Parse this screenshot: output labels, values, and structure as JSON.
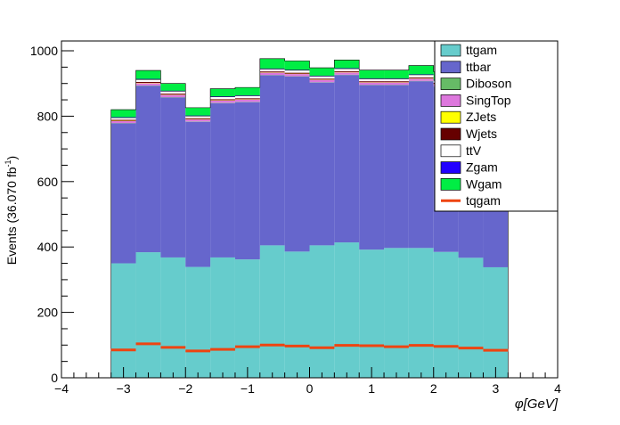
{
  "chart_data": {
    "type": "stacked-histogram",
    "x_edges": [
      -3.2,
      -2.8,
      -2.4,
      -2.0,
      -1.6,
      -1.2,
      -0.8,
      -0.4,
      0.0,
      0.4,
      0.8,
      1.2,
      1.6,
      2.0,
      2.4,
      2.8,
      3.2
    ],
    "xlim": [
      -4,
      4
    ],
    "ylim": [
      0,
      1030
    ],
    "x_ticks": [
      -4,
      -3,
      -2,
      -1,
      0,
      1,
      2,
      3,
      4
    ],
    "y_ticks": [
      0,
      200,
      400,
      600,
      800,
      1000
    ],
    "x_tick_labels": [
      "−4",
      "−3",
      "−2",
      "−1",
      "0",
      "1",
      "2",
      "3",
      "4"
    ],
    "y_tick_labels": [
      "0",
      "200",
      "400",
      "600",
      "800",
      "1000"
    ],
    "ylabel_main": "Events (36.070 fb",
    "ylabel_sup": "-1",
    "ylabel_end": ")",
    "xlabel_phi": "φ",
    "xlabel_unit": "[GeV]",
    "stack": [
      {
        "name": "ttgam",
        "color": "#66cccc",
        "values": [
          350,
          384,
          368,
          339,
          368,
          362,
          405,
          386,
          405,
          414,
          392,
          397,
          397,
          385,
          367,
          338
        ]
      },
      {
        "name": "ttbar",
        "color": "#6666cc",
        "values": [
          428,
          509,
          489,
          444,
          472,
          481,
          520,
          535,
          498,
          512,
          503,
          498,
          510,
          505,
          520,
          548
        ]
      },
      {
        "name": "Diboson",
        "color": "#66bb66",
        "values": [
          1,
          1,
          1,
          1,
          1,
          1,
          1,
          1,
          1,
          1,
          1,
          1,
          1,
          1,
          1,
          1
        ]
      },
      {
        "name": "SingTop",
        "color": "#dd77dd",
        "values": [
          6,
          7,
          7,
          6,
          7,
          7,
          7,
          7,
          7,
          7,
          7,
          7,
          7,
          7,
          7,
          7
        ]
      },
      {
        "name": "ZJets",
        "color": "#ffff00",
        "values": [
          1,
          1,
          1,
          1,
          1,
          1,
          1,
          1,
          1,
          1,
          1,
          1,
          1,
          1,
          1,
          1
        ]
      },
      {
        "name": "Wjets",
        "color": "#660000",
        "values": [
          3,
          3,
          3,
          3,
          3,
          3,
          3,
          3,
          3,
          3,
          3,
          3,
          3,
          3,
          3,
          3
        ]
      },
      {
        "name": "ttV",
        "color": "#ffffff",
        "values": [
          7,
          8,
          8,
          7,
          8,
          8,
          8,
          8,
          8,
          8,
          8,
          8,
          8,
          8,
          8,
          8
        ]
      },
      {
        "name": "Zgam",
        "color": "#2200ff",
        "values": [
          1,
          1,
          1,
          1,
          1,
          1,
          1,
          1,
          1,
          1,
          1,
          1,
          1,
          1,
          1,
          1
        ]
      },
      {
        "name": "Wgam",
        "color": "#00ee44",
        "values": [
          23,
          26,
          22,
          24,
          23,
          24,
          30,
          27,
          24,
          25,
          25,
          25,
          27,
          25,
          26,
          24
        ]
      }
    ],
    "overlay": {
      "name": "tqgam",
      "color": "#ee4411",
      "values": [
        85,
        104,
        93,
        82,
        87,
        95,
        100,
        97,
        92,
        99,
        98,
        95,
        99,
        96,
        91,
        84
      ]
    }
  }
}
